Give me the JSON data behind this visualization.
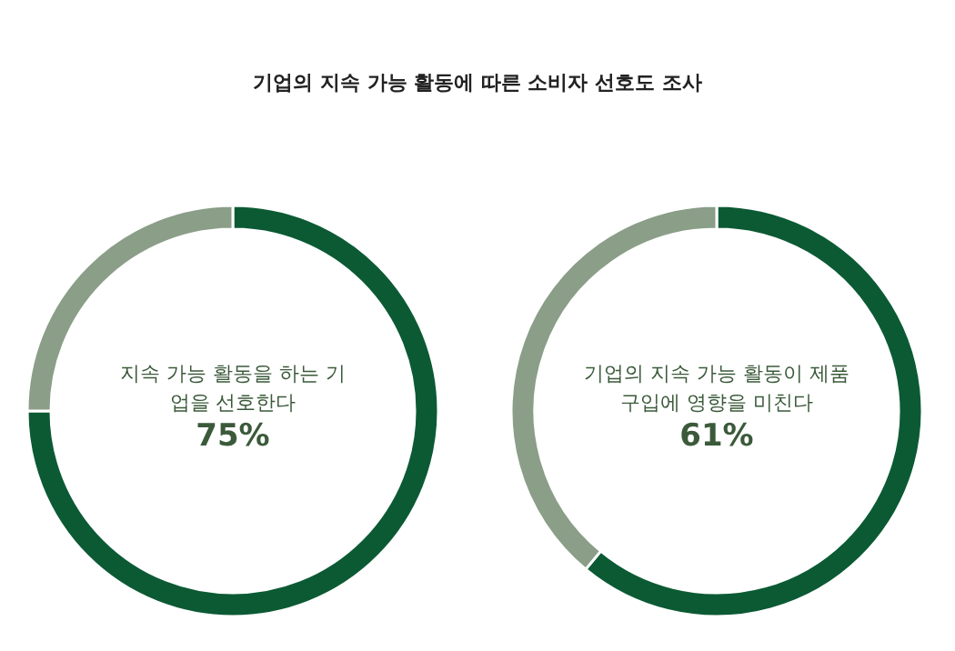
{
  "chart_data": [
    {
      "type": "donut",
      "title": "기업의 지속 가능 활동에 따른 소비자 선호도 조사",
      "categories": [
        null,
        null
      ],
      "values": [
        75,
        25
      ],
      "colors": [
        "#0b5a34",
        "#8a9e88"
      ],
      "value_labels": [
        "75%",
        null
      ],
      "annotations": [
        "지속 가능 활동을 하는 기업을 선호한다"
      ]
    },
    {
      "type": "donut",
      "categories": [
        null,
        null
      ],
      "values": [
        61,
        39
      ],
      "colors": [
        "#0b5a34",
        "#8a9e88"
      ],
      "value_labels": [
        "61%",
        null
      ],
      "annotations": [
        "기업의 지속 가능 활동이 제품 구입에 영향을 미친다"
      ]
    }
  ]
}
